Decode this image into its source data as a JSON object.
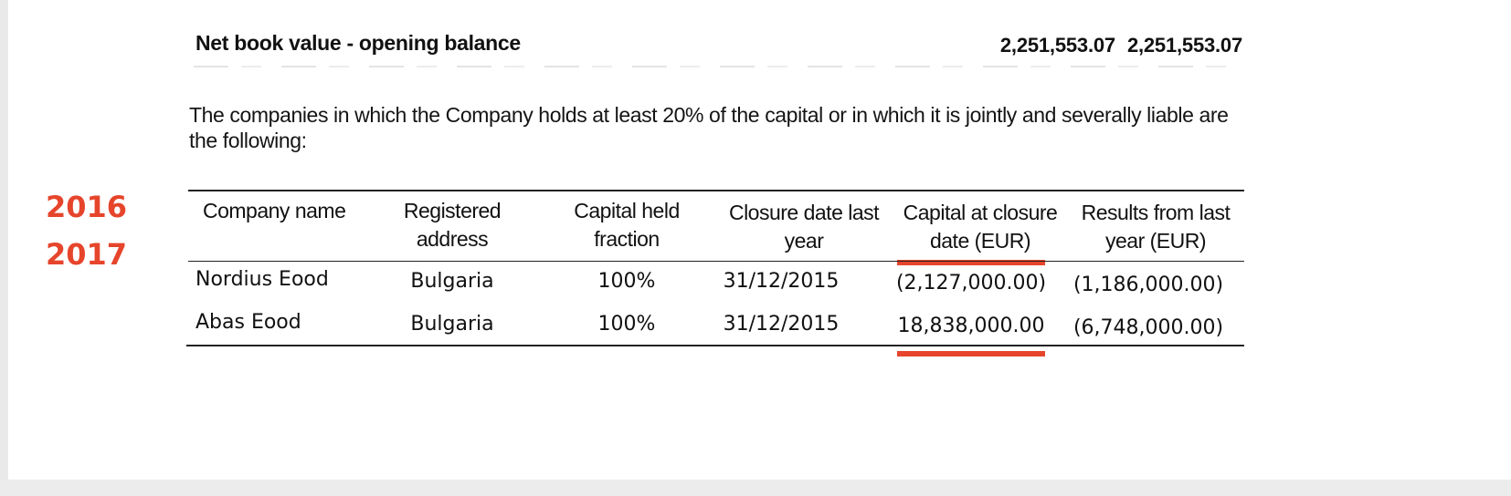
{
  "net_book_value": {
    "label": "Net book value - opening balance",
    "value_1": "2,251,553.07",
    "value_2": "2,251,553.07"
  },
  "intro_text": "The companies in which the Company holds at least 20% of the capital or in which it is jointly and severally liable are the following:",
  "year_labels": {
    "first": "2016",
    "second": "2017"
  },
  "table": {
    "headers": {
      "company_name": "Company name",
      "registered_address_line1": "Registered",
      "registered_address_line2": "address",
      "capital_held_line1": "Capital held",
      "capital_held_line2": "fraction",
      "closure_date_line1": "Closure date last",
      "closure_date_line2": "year",
      "capital_closure_line1": "Capital at closure",
      "capital_closure_line2": "date (EUR)",
      "results_line1": "Results from last",
      "results_line2": "year (EUR)"
    },
    "rows": [
      {
        "company_name": "Nordius Eood",
        "registered_address": "Bulgaria",
        "capital_held_fraction": "100%",
        "closure_date_last_year": "31/12/2015",
        "capital_at_closure_date": "(2,127,000.00)",
        "results_from_last_year": "(1,186,000.00)"
      },
      {
        "company_name": "Abas Eood",
        "registered_address": "Bulgaria",
        "capital_held_fraction": "100%",
        "closure_date_last_year": "31/12/2015",
        "capital_at_closure_date": "18,838,000.00",
        "results_from_last_year": "(6,748,000.00)"
      }
    ]
  },
  "colors": {
    "accent_red": "#e6452c",
    "text": "#111111",
    "rule": "#222222"
  }
}
